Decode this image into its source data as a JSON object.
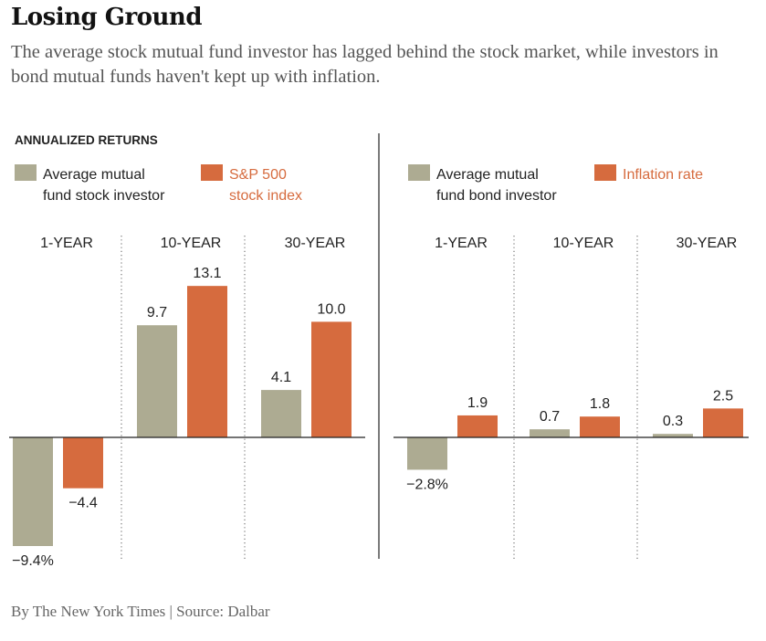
{
  "title": "Losing Ground",
  "subtitle": "The average stock mutual fund investor has lagged behind the stock market, while investors in bond mutual funds haven't kept up with inflation.",
  "footer": "By The New York Times | Source: Dalbar",
  "colors": {
    "gray": "#adab92",
    "orange": "#d66b3e",
    "text": "#222222",
    "divider": "#222222"
  },
  "chart_data": [
    {
      "type": "bar",
      "title": "ANNUALIZED RETURNS",
      "categories": [
        "1-YEAR",
        "10-YEAR",
        "30-YEAR"
      ],
      "series": [
        {
          "name": "Average mutual fund stock investor",
          "legend_lines": [
            "Average mutual",
            "fund stock investor"
          ],
          "color": "#adab92",
          "values": [
            -9.4,
            9.7,
            4.1
          ],
          "labels": [
            "−9.4%",
            "9.7",
            "4.1"
          ]
        },
        {
          "name": "S&P 500 stock index",
          "legend_lines": [
            "S&P 500",
            "stock index"
          ],
          "color": "#d66b3e",
          "values": [
            -4.4,
            13.1,
            10.0
          ],
          "labels": [
            "−4.4",
            "13.1",
            "10.0"
          ]
        }
      ],
      "ylabel": "",
      "xlabel": ""
    },
    {
      "type": "bar",
      "title": "",
      "categories": [
        "1-YEAR",
        "10-YEAR",
        "30-YEAR"
      ],
      "series": [
        {
          "name": "Average mutual fund bond investor",
          "legend_lines": [
            "Average mutual",
            "fund bond investor"
          ],
          "color": "#adab92",
          "values": [
            -2.8,
            0.7,
            0.3
          ],
          "labels": [
            "−2.8%",
            "0.7",
            "0.3"
          ]
        },
        {
          "name": "Inflation rate",
          "legend_lines": [
            "Inflation rate"
          ],
          "color": "#d66b3e",
          "values": [
            1.9,
            1.8,
            2.5
          ],
          "labels": [
            "1.9",
            "1.8",
            "2.5"
          ]
        }
      ],
      "ylabel": "",
      "xlabel": ""
    }
  ]
}
